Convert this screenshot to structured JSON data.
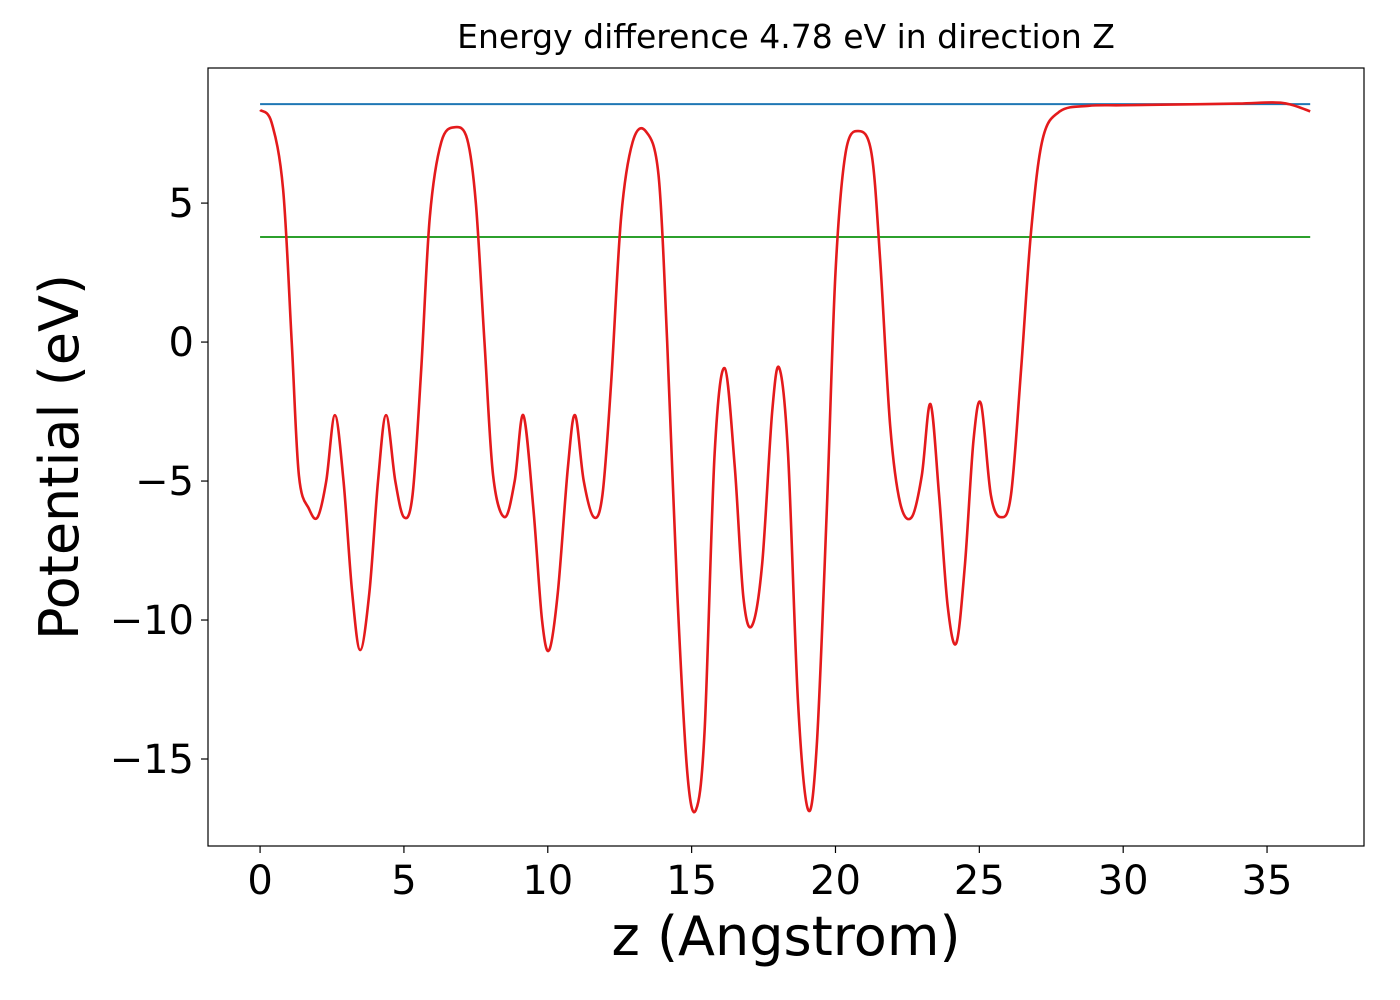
{
  "chart_data": {
    "type": "line",
    "title": "Energy difference 4.78 eV in direction Z",
    "x_label": "z (Angstrom)",
    "y_label": "Potential (eV)",
    "xlim": [
      -1.81,
      38.37
    ],
    "ylim": [
      -18.13,
      9.86
    ],
    "xticks": [
      0,
      5,
      10,
      15,
      20,
      25,
      30,
      35
    ],
    "yticks": [
      {
        "value": -15,
        "label": "−15"
      },
      {
        "value": -10,
        "label": "−10"
      },
      {
        "value": -5,
        "label": "−5"
      },
      0,
      5
    ],
    "grid": false,
    "series": [
      {
        "color": "#1f77b4",
        "x": [
          0,
          36.5
        ],
        "values": [
          8.56,
          8.56
        ]
      },
      {
        "color": "#2ca02c",
        "x": [
          0,
          36.5
        ],
        "values": [
          3.78,
          3.78
        ]
      },
      {
        "color": "#e41a1c",
        "x": [
          0,
          0.4,
          0.8,
          1.1,
          1.35,
          1.7,
          2.0,
          2.3,
          2.6,
          2.9,
          3.2,
          3.48,
          3.8,
          4.1,
          4.38,
          4.7,
          5.0,
          5.3,
          5.6,
          5.9,
          6.3,
          6.78,
          7.2,
          7.5,
          7.8,
          8.1,
          8.5,
          8.85,
          9.15,
          9.5,
          9.8,
          10.05,
          10.35,
          10.7,
          10.95,
          11.25,
          11.6,
          11.9,
          12.2,
          12.55,
          12.95,
          13.4,
          13.85,
          14.15,
          14.5,
          14.85,
          15.15,
          15.45,
          15.8,
          16.15,
          16.5,
          16.8,
          17.1,
          17.45,
          17.8,
          18.05,
          18.35,
          18.7,
          19.05,
          19.35,
          19.7,
          20.0,
          20.35,
          20.8,
          21.25,
          21.55,
          21.9,
          22.25,
          22.65,
          23.0,
          23.3,
          23.6,
          23.9,
          24.2,
          24.5,
          24.8,
          25.06,
          25.4,
          25.75,
          26.1,
          26.45,
          26.8,
          27.2,
          27.8,
          28.8,
          30,
          32,
          34,
          35.2,
          35.8,
          36.5
        ],
        "values": [
          8.35,
          7.9,
          5.5,
          0,
          -4.8,
          -6.0,
          -6.3,
          -5.0,
          -2.63,
          -5.0,
          -9.0,
          -11.08,
          -9.0,
          -5.0,
          -2.63,
          -5.0,
          -6.3,
          -5.5,
          -1.0,
          4.5,
          7.2,
          7.73,
          7.3,
          5.0,
          0,
          -4.8,
          -6.3,
          -5.0,
          -2.63,
          -6.0,
          -10.0,
          -11.08,
          -9.0,
          -4.5,
          -2.63,
          -5.0,
          -6.3,
          -5.5,
          -1.5,
          4.5,
          7.2,
          7.59,
          6.0,
          0,
          -9.0,
          -15.5,
          -16.83,
          -14.0,
          -4.0,
          -0.94,
          -4.5,
          -9.2,
          -10.2,
          -8.0,
          -2.5,
          -0.94,
          -4.0,
          -13.0,
          -16.83,
          -14.5,
          -6.0,
          2.5,
          6.8,
          7.59,
          6.8,
          3.0,
          -3.0,
          -5.8,
          -6.3,
          -4.8,
          -2.23,
          -5.5,
          -9.5,
          -10.83,
          -8.0,
          -3.5,
          -2.23,
          -5.5,
          -6.3,
          -5.5,
          -1.0,
          4.0,
          7.3,
          8.3,
          8.5,
          8.52,
          8.55,
          8.58,
          8.62,
          8.55,
          8.3
        ]
      }
    ]
  }
}
